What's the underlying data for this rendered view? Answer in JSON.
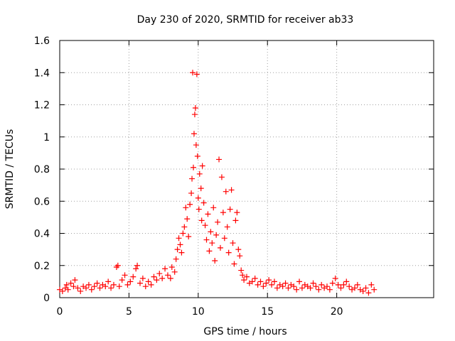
{
  "chart_data": {
    "type": "scatter",
    "title": "Day 230 of 2020, SRMTID for receiver ab33",
    "xlabel": "GPS time / hours",
    "ylabel": "SRMTID / TECUs",
    "xlim": [
      0,
      27
    ],
    "ylim": [
      0,
      1.6
    ],
    "xticks": [
      0,
      5,
      10,
      15,
      20
    ],
    "xtick_labels": [
      "0",
      "5",
      "10",
      "15",
      "20"
    ],
    "yticks": [
      0,
      0.2,
      0.4,
      0.6,
      0.8,
      1,
      1.2,
      1.4,
      1.6
    ],
    "ytick_labels": [
      "0",
      "0.2",
      "0.4",
      "0.6",
      "0.8",
      "1",
      "1.2",
      "1.4",
      "1.6"
    ],
    "grid": true,
    "marker": "+",
    "color": "#ff0000",
    "series": [
      {
        "name": "SRMTID",
        "points": [
          [
            0.0,
            0.05
          ],
          [
            0.2,
            0.04
          ],
          [
            0.4,
            0.06
          ],
          [
            0.5,
            0.08
          ],
          [
            0.6,
            0.05
          ],
          [
            0.8,
            0.09
          ],
          [
            1.0,
            0.07
          ],
          [
            1.1,
            0.11
          ],
          [
            1.3,
            0.06
          ],
          [
            1.5,
            0.04
          ],
          [
            1.7,
            0.07
          ],
          [
            1.9,
            0.06
          ],
          [
            2.1,
            0.08
          ],
          [
            2.3,
            0.05
          ],
          [
            2.5,
            0.07
          ],
          [
            2.7,
            0.09
          ],
          [
            2.9,
            0.06
          ],
          [
            3.1,
            0.08
          ],
          [
            3.3,
            0.07
          ],
          [
            3.5,
            0.1
          ],
          [
            3.7,
            0.06
          ],
          [
            3.9,
            0.08
          ],
          [
            4.1,
            0.19
          ],
          [
            4.2,
            0.2
          ],
          [
            4.3,
            0.07
          ],
          [
            4.5,
            0.11
          ],
          [
            4.7,
            0.14
          ],
          [
            4.9,
            0.08
          ],
          [
            5.1,
            0.1
          ],
          [
            5.3,
            0.13
          ],
          [
            5.5,
            0.18
          ],
          [
            5.6,
            0.2
          ],
          [
            5.8,
            0.09
          ],
          [
            6.0,
            0.12
          ],
          [
            6.2,
            0.07
          ],
          [
            6.4,
            0.1
          ],
          [
            6.6,
            0.08
          ],
          [
            6.8,
            0.13
          ],
          [
            7.0,
            0.11
          ],
          [
            7.2,
            0.15
          ],
          [
            7.4,
            0.12
          ],
          [
            7.6,
            0.18
          ],
          [
            7.8,
            0.14
          ],
          [
            8.0,
            0.12
          ],
          [
            8.1,
            0.19
          ],
          [
            8.3,
            0.16
          ],
          [
            8.4,
            0.24
          ],
          [
            8.5,
            0.3
          ],
          [
            8.6,
            0.37
          ],
          [
            8.7,
            0.33
          ],
          [
            8.8,
            0.28
          ],
          [
            8.9,
            0.4
          ],
          [
            9.0,
            0.44
          ],
          [
            9.1,
            0.56
          ],
          [
            9.2,
            0.49
          ],
          [
            9.3,
            0.38
          ],
          [
            9.4,
            0.58
          ],
          [
            9.5,
            0.65
          ],
          [
            9.55,
            0.74
          ],
          [
            9.6,
            1.4
          ],
          [
            9.65,
            0.81
          ],
          [
            9.7,
            1.02
          ],
          [
            9.75,
            1.14
          ],
          [
            9.8,
            1.18
          ],
          [
            9.85,
            0.95
          ],
          [
            9.9,
            1.39
          ],
          [
            9.95,
            0.88
          ],
          [
            10.0,
            0.62
          ],
          [
            10.05,
            0.55
          ],
          [
            10.1,
            0.77
          ],
          [
            10.2,
            0.68
          ],
          [
            10.25,
            0.48
          ],
          [
            10.3,
            0.82
          ],
          [
            10.4,
            0.59
          ],
          [
            10.5,
            0.45
          ],
          [
            10.6,
            0.36
          ],
          [
            10.7,
            0.52
          ],
          [
            10.8,
            0.29
          ],
          [
            10.9,
            0.41
          ],
          [
            11.0,
            0.34
          ],
          [
            11.1,
            0.56
          ],
          [
            11.2,
            0.23
          ],
          [
            11.3,
            0.39
          ],
          [
            11.4,
            0.47
          ],
          [
            11.5,
            0.86
          ],
          [
            11.6,
            0.31
          ],
          [
            11.7,
            0.75
          ],
          [
            11.8,
            0.53
          ],
          [
            11.9,
            0.37
          ],
          [
            12.0,
            0.66
          ],
          [
            12.1,
            0.44
          ],
          [
            12.2,
            0.28
          ],
          [
            12.3,
            0.55
          ],
          [
            12.4,
            0.67
          ],
          [
            12.5,
            0.34
          ],
          [
            12.6,
            0.21
          ],
          [
            12.7,
            0.48
          ],
          [
            12.8,
            0.53
          ],
          [
            12.9,
            0.3
          ],
          [
            13.0,
            0.26
          ],
          [
            13.1,
            0.17
          ],
          [
            13.2,
            0.14
          ],
          [
            13.3,
            0.11
          ],
          [
            13.5,
            0.13
          ],
          [
            13.7,
            0.09
          ],
          [
            13.9,
            0.1
          ],
          [
            14.1,
            0.12
          ],
          [
            14.3,
            0.08
          ],
          [
            14.5,
            0.1
          ],
          [
            14.7,
            0.07
          ],
          [
            14.9,
            0.09
          ],
          [
            15.1,
            0.11
          ],
          [
            15.3,
            0.08
          ],
          [
            15.5,
            0.1
          ],
          [
            15.7,
            0.06
          ],
          [
            15.9,
            0.08
          ],
          [
            16.1,
            0.07
          ],
          [
            16.3,
            0.09
          ],
          [
            16.5,
            0.06
          ],
          [
            16.7,
            0.08
          ],
          [
            16.9,
            0.07
          ],
          [
            17.1,
            0.05
          ],
          [
            17.3,
            0.1
          ],
          [
            17.5,
            0.06
          ],
          [
            17.7,
            0.08
          ],
          [
            17.9,
            0.07
          ],
          [
            18.1,
            0.06
          ],
          [
            18.3,
            0.09
          ],
          [
            18.5,
            0.07
          ],
          [
            18.7,
            0.05
          ],
          [
            18.9,
            0.08
          ],
          [
            19.1,
            0.06
          ],
          [
            19.3,
            0.07
          ],
          [
            19.5,
            0.05
          ],
          [
            19.7,
            0.09
          ],
          [
            19.9,
            0.12
          ],
          [
            20.1,
            0.08
          ],
          [
            20.3,
            0.06
          ],
          [
            20.5,
            0.08
          ],
          [
            20.7,
            0.1
          ],
          [
            20.9,
            0.07
          ],
          [
            21.1,
            0.05
          ],
          [
            21.3,
            0.06
          ],
          [
            21.5,
            0.08
          ],
          [
            21.7,
            0.05
          ],
          [
            21.9,
            0.04
          ],
          [
            22.1,
            0.06
          ],
          [
            22.3,
            0.03
          ],
          [
            22.5,
            0.08
          ],
          [
            22.7,
            0.05
          ]
        ]
      }
    ]
  }
}
